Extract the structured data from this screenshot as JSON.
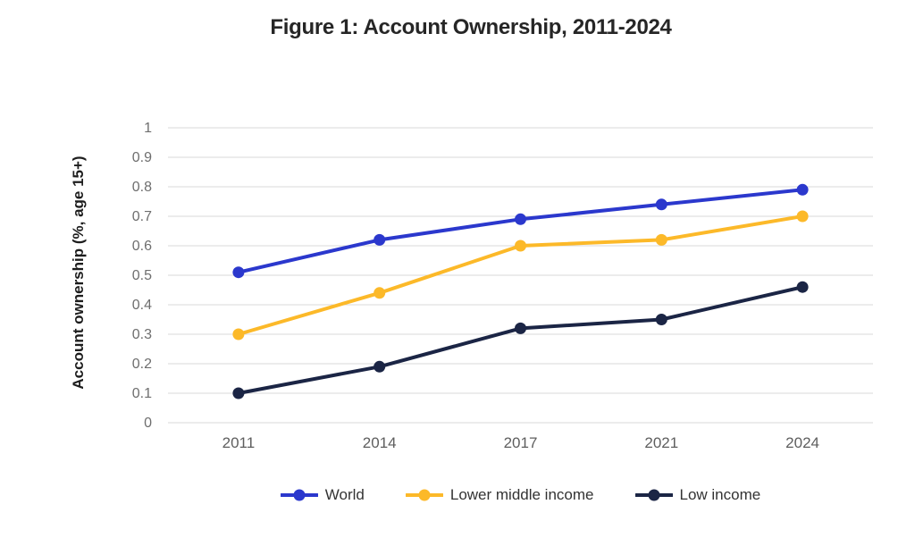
{
  "title": "Figure 1: Account Ownership, 2011-2024",
  "chart_data": {
    "type": "line",
    "title": "Figure 1: Account Ownership, 2011-2024",
    "categories": [
      "2011",
      "2014",
      "2017",
      "2021",
      "2024"
    ],
    "series": [
      {
        "name": "World",
        "color": "#2b38cd",
        "values": [
          0.51,
          0.62,
          0.69,
          0.74,
          0.79
        ]
      },
      {
        "name": "Lower middle income",
        "color": "#fcb929",
        "values": [
          0.3,
          0.44,
          0.6,
          0.62,
          0.7
        ]
      },
      {
        "name": "Low income",
        "color": "#1b2545",
        "values": [
          0.1,
          0.19,
          0.32,
          0.35,
          0.46
        ]
      }
    ],
    "xlabel": "",
    "ylabel": "Account ownership (%, age 15+)",
    "ylim": [
      0,
      1
    ],
    "yticks": [
      "0",
      "0.1",
      "0.2",
      "0.3",
      "0.4",
      "0.5",
      "0.6",
      "0.7",
      "0.8",
      "0.9",
      "1"
    ],
    "grid": true,
    "gridline_color": "#d9d9d9",
    "legend_position": "bottom"
  }
}
